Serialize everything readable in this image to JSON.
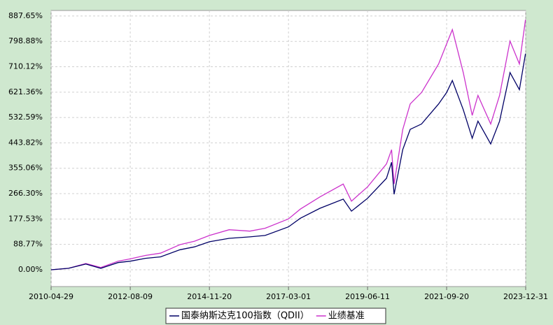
{
  "chart_data": {
    "type": "line",
    "x": [
      "2010-04-29",
      "2010-10-29",
      "2011-04-29",
      "2011-10-04",
      "2012-04-02",
      "2012-08-09",
      "2013-01-15",
      "2013-06-24",
      "2014-01-15",
      "2014-06-16",
      "2014-11-20",
      "2015-06-15",
      "2016-01-20",
      "2016-06-27",
      "2017-03-01",
      "2017-07-03",
      "2018-01-26",
      "2018-09-28",
      "2018-12-24",
      "2019-06-11",
      "2019-12-27",
      "2020-02-19",
      "2020-03-16",
      "2020-06-15",
      "2020-09-02",
      "2020-12-30",
      "2021-06-28",
      "2021-09-20",
      "2021-11-19",
      "2022-03-14",
      "2022-06-16",
      "2022-08-16",
      "2022-12-28",
      "2023-03-31",
      "2023-07-19",
      "2023-10-26",
      "2023-12-29"
    ],
    "series": [
      {
        "name": "国泰纳斯达克100指数（QDII）",
        "color": "#000066",
        "values": [
          0,
          5,
          20,
          5,
          25,
          30,
          40,
          45,
          70,
          80,
          98,
          110,
          115,
          120,
          150,
          180,
          215,
          247,
          205,
          250,
          320,
          376,
          264,
          420,
          491,
          510,
          580,
          620,
          662,
          560,
          460,
          520,
          440,
          520,
          690,
          630,
          756
        ]
      },
      {
        "name": "业绩基准",
        "color": "#cc33cc",
        "values": [
          0,
          5,
          22,
          8,
          30,
          38,
          50,
          58,
          88,
          100,
          120,
          140,
          135,
          145,
          178,
          212,
          255,
          300,
          240,
          290,
          370,
          420,
          300,
          490,
          580,
          620,
          720,
          790,
          840,
          690,
          540,
          610,
          510,
          610,
          800,
          720,
          875
        ]
      }
    ],
    "xlim": [
      "2010-04-29",
      "2023-12-31"
    ],
    "xticks": [
      "2010-04-29",
      "2012-08-09",
      "2014-11-20",
      "2017-03-01",
      "2019-06-11",
      "2021-09-20",
      "2023-12-31"
    ],
    "ylim": [
      -58.8,
      907
    ],
    "yticks": [
      {
        "value": 0,
        "label": "0.00%"
      },
      {
        "value": 88.77,
        "label": "88.77%"
      },
      {
        "value": 177.53,
        "label": "177.53%"
      },
      {
        "value": 266.3,
        "label": "266.30%"
      },
      {
        "value": 355.06,
        "label": "355.06%"
      },
      {
        "value": 443.82,
        "label": "443.82%"
      },
      {
        "value": 532.59,
        "label": "532.59%"
      },
      {
        "value": 621.36,
        "label": "621.36%"
      },
      {
        "value": 710.12,
        "label": "710.12%"
      },
      {
        "value": 798.88,
        "label": "798.88%"
      },
      {
        "value": 887.65,
        "label": "887.65%"
      }
    ],
    "grid": true
  }
}
